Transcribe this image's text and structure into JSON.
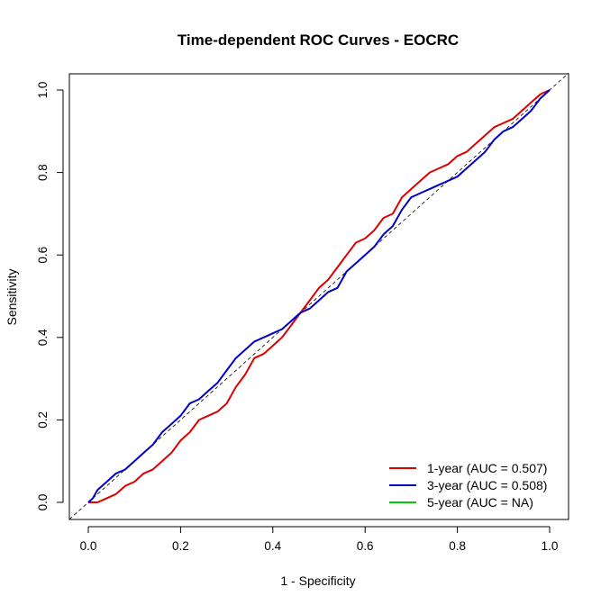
{
  "chart_data": {
    "type": "line",
    "title": "Time-dependent ROC Curves - EOCRC",
    "xlabel": "1 - Specificity",
    "ylabel": "Sensitivity",
    "xlim": [
      0,
      1
    ],
    "ylim": [
      0,
      1
    ],
    "x_ticks": [
      "0.0",
      "0.2",
      "0.4",
      "0.6",
      "0.8",
      "1.0"
    ],
    "y_ticks": [
      "0.0",
      "0.2",
      "0.4",
      "0.6",
      "0.8",
      "1.0"
    ],
    "grid": false,
    "reference_line": "diagonal (0,0)-(1,1), dashed",
    "legend_position": "bottom-right",
    "series": [
      {
        "name": "1-year (AUC = 0.507)",
        "color": "#dd0000",
        "points": [
          [
            0,
            0
          ],
          [
            0.02,
            0
          ],
          [
            0.04,
            0.01
          ],
          [
            0.06,
            0.02
          ],
          [
            0.08,
            0.04
          ],
          [
            0.1,
            0.05
          ],
          [
            0.12,
            0.07
          ],
          [
            0.14,
            0.08
          ],
          [
            0.16,
            0.1
          ],
          [
            0.18,
            0.12
          ],
          [
            0.2,
            0.15
          ],
          [
            0.22,
            0.17
          ],
          [
            0.24,
            0.2
          ],
          [
            0.26,
            0.21
          ],
          [
            0.28,
            0.22
          ],
          [
            0.3,
            0.24
          ],
          [
            0.32,
            0.28
          ],
          [
            0.34,
            0.31
          ],
          [
            0.36,
            0.35
          ],
          [
            0.38,
            0.36
          ],
          [
            0.4,
            0.38
          ],
          [
            0.42,
            0.4
          ],
          [
            0.44,
            0.43
          ],
          [
            0.46,
            0.46
          ],
          [
            0.48,
            0.49
          ],
          [
            0.5,
            0.52
          ],
          [
            0.52,
            0.54
          ],
          [
            0.54,
            0.57
          ],
          [
            0.56,
            0.6
          ],
          [
            0.58,
            0.63
          ],
          [
            0.6,
            0.64
          ],
          [
            0.62,
            0.66
          ],
          [
            0.64,
            0.69
          ],
          [
            0.66,
            0.7
          ],
          [
            0.68,
            0.74
          ],
          [
            0.7,
            0.76
          ],
          [
            0.72,
            0.78
          ],
          [
            0.74,
            0.8
          ],
          [
            0.76,
            0.81
          ],
          [
            0.78,
            0.82
          ],
          [
            0.8,
            0.84
          ],
          [
            0.82,
            0.85
          ],
          [
            0.84,
            0.87
          ],
          [
            0.86,
            0.89
          ],
          [
            0.88,
            0.91
          ],
          [
            0.9,
            0.92
          ],
          [
            0.92,
            0.93
          ],
          [
            0.94,
            0.95
          ],
          [
            0.96,
            0.97
          ],
          [
            0.98,
            0.99
          ],
          [
            1,
            1
          ]
        ]
      },
      {
        "name": "3-year (AUC = 0.508)",
        "color": "#0000cc",
        "points": [
          [
            0,
            0
          ],
          [
            0.01,
            0.01
          ],
          [
            0.02,
            0.03
          ],
          [
            0.04,
            0.05
          ],
          [
            0.06,
            0.07
          ],
          [
            0.08,
            0.08
          ],
          [
            0.1,
            0.1
          ],
          [
            0.12,
            0.12
          ],
          [
            0.14,
            0.14
          ],
          [
            0.16,
            0.17
          ],
          [
            0.18,
            0.19
          ],
          [
            0.2,
            0.21
          ],
          [
            0.22,
            0.24
          ],
          [
            0.24,
            0.25
          ],
          [
            0.26,
            0.27
          ],
          [
            0.28,
            0.29
          ],
          [
            0.3,
            0.32
          ],
          [
            0.32,
            0.35
          ],
          [
            0.34,
            0.37
          ],
          [
            0.36,
            0.39
          ],
          [
            0.38,
            0.4
          ],
          [
            0.4,
            0.41
          ],
          [
            0.42,
            0.42
          ],
          [
            0.44,
            0.44
          ],
          [
            0.46,
            0.46
          ],
          [
            0.48,
            0.47
          ],
          [
            0.5,
            0.49
          ],
          [
            0.52,
            0.51
          ],
          [
            0.54,
            0.52
          ],
          [
            0.56,
            0.56
          ],
          [
            0.58,
            0.58
          ],
          [
            0.6,
            0.6
          ],
          [
            0.62,
            0.62
          ],
          [
            0.64,
            0.65
          ],
          [
            0.66,
            0.67
          ],
          [
            0.68,
            0.71
          ],
          [
            0.7,
            0.74
          ],
          [
            0.72,
            0.75
          ],
          [
            0.74,
            0.76
          ],
          [
            0.76,
            0.77
          ],
          [
            0.78,
            0.78
          ],
          [
            0.8,
            0.79
          ],
          [
            0.82,
            0.81
          ],
          [
            0.84,
            0.83
          ],
          [
            0.86,
            0.85
          ],
          [
            0.88,
            0.88
          ],
          [
            0.9,
            0.9
          ],
          [
            0.92,
            0.91
          ],
          [
            0.94,
            0.93
          ],
          [
            0.96,
            0.95
          ],
          [
            0.98,
            0.98
          ],
          [
            1,
            1
          ]
        ]
      },
      {
        "name": "5-year (AUC = NA)",
        "color": "#00cc00",
        "points": []
      }
    ]
  }
}
